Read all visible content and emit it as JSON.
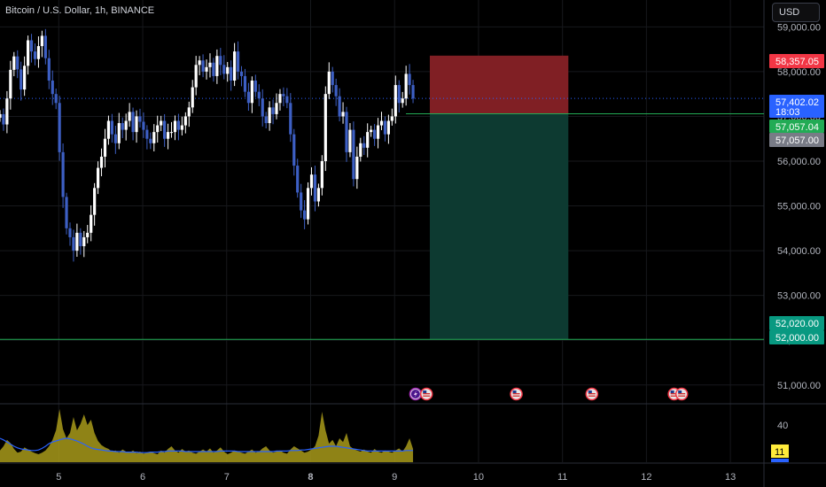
{
  "header": {
    "symbol_title": "Bitcoin / U.S. Dollar, 1h, BINANCE",
    "currency_button": "USD"
  },
  "colors": {
    "background": "#000000",
    "up_candle": "#ffffff",
    "down_candle": "#3d5fc4",
    "stop_zone": "#801f24",
    "target_zone": "#0d3a31",
    "current_price_tag": "#2962ff",
    "entry_tag": "#22ab55",
    "entry_tag_gray": "#787b86",
    "stop_tag": "#f23645",
    "target_tag": "#089981",
    "volume_area": "#a89a1a",
    "volume_ma": "#2962ff",
    "indicator_tag": "#ffeb3b"
  },
  "chart_data": {
    "type": "candlestick",
    "y_axis": {
      "min": 50600,
      "max": 59600,
      "ticks": [
        "59,000.00",
        "58,000.00",
        "57,000.00",
        "56,000.00",
        "55,000.00",
        "54,000.00",
        "53,000.00",
        "52,000.00",
        "51,000.00"
      ],
      "tick_values": [
        59000,
        58000,
        57000,
        56000,
        55000,
        54000,
        53000,
        52000,
        51000
      ]
    },
    "x_axis": {
      "ticks": [
        "5",
        "6",
        "7",
        "8",
        "9",
        "10",
        "11",
        "12",
        "13"
      ],
      "tick_values": [
        5,
        6,
        7,
        8,
        9,
        10,
        11,
        12,
        13
      ],
      "bold_ticks": [
        "8"
      ],
      "min": 4.3,
      "max": 13.4
    },
    "price_tags": [
      {
        "label": "58,357.05",
        "value": 58357.05,
        "role": "stop"
      },
      {
        "label": "57,402.02",
        "sub": "18:03",
        "value": 57402.02,
        "role": "current"
      },
      {
        "label": "57,057.04",
        "value": 57057.04,
        "role": "entry"
      },
      {
        "label": "57,057.00",
        "value": 57057.0,
        "role": "entry-gray"
      },
      {
        "label": "52,020.00",
        "value": 52020.0,
        "role": "target"
      },
      {
        "label": "52,000.00",
        "value": 52000.0,
        "role": "target"
      }
    ],
    "position": {
      "type": "short",
      "x_start": 9.42,
      "x_end": 11.07,
      "entry": 57057.04,
      "stop": 58357.05,
      "target": 52020.0
    },
    "closes": [
      57050,
      56820,
      57400,
      58040,
      58340,
      58050,
      57600,
      58130,
      58700,
      58450,
      58280,
      58570,
      58800,
      58300,
      57800,
      57500,
      57300,
      56200,
      55200,
      54500,
      54300,
      54000,
      54400,
      54100,
      54300,
      54400,
      54800,
      55400,
      55850,
      56100,
      56500,
      56900,
      56600,
      56400,
      56850,
      56700,
      56900,
      57100,
      56650,
      57000,
      56880,
      56700,
      56500,
      56400,
      56650,
      56800,
      56900,
      56500,
      56650,
      56650,
      56900,
      56700,
      56800,
      57000,
      57200,
      57650,
      58150,
      58250,
      58000,
      58100,
      58200,
      57900,
      58350,
      58150,
      57950,
      58100,
      57800,
      58450,
      58000,
      57900,
      57550,
      57300,
      57800,
      57550,
      57400,
      57000,
      56850,
      57200,
      57050,
      57300,
      57500,
      57450,
      57300,
      56600,
      55900,
      55300,
      54900,
      54700,
      55400,
      55700,
      55100,
      55400,
      56000,
      57500,
      58000,
      57700,
      57450,
      57000,
      57100,
      56200,
      56700,
      55600,
      56100,
      56400,
      56300,
      56650,
      56700,
      56500,
      56800,
      56900,
      56600,
      56900,
      57000,
      57700,
      57300,
      57400,
      57950,
      57700,
      57400
    ]
  },
  "volume_panel": {
    "axis_tick": "40",
    "indicator_value": "11",
    "values": [
      0.22,
      0.3,
      0.42,
      0.36,
      0.25,
      0.18,
      0.2,
      0.28,
      0.24,
      0.2,
      0.17,
      0.15,
      0.18,
      0.22,
      0.3,
      0.42,
      0.6,
      1.0,
      0.62,
      0.45,
      0.55,
      0.85,
      0.6,
      0.72,
      0.9,
      0.7,
      0.8,
      0.55,
      0.4,
      0.32,
      0.28,
      0.25,
      0.2,
      0.22,
      0.18,
      0.24,
      0.2,
      0.18,
      0.22,
      0.17,
      0.2,
      0.16,
      0.18,
      0.2,
      0.17,
      0.15,
      0.22,
      0.18,
      0.25,
      0.3,
      0.22,
      0.18,
      0.25,
      0.2,
      0.22,
      0.18,
      0.16,
      0.2,
      0.24,
      0.2,
      0.26,
      0.18,
      0.22,
      0.28,
      0.2,
      0.15,
      0.18,
      0.22,
      0.2,
      0.18,
      0.16,
      0.2,
      0.24,
      0.18,
      0.2,
      0.26,
      0.3,
      0.22,
      0.18,
      0.2,
      0.22,
      0.18,
      0.16,
      0.24,
      0.3,
      0.26,
      0.22,
      0.18,
      0.2,
      0.24,
      0.3,
      0.5,
      0.95,
      0.6,
      0.35,
      0.42,
      0.3,
      0.45,
      0.38,
      0.55,
      0.3,
      0.25,
      0.22,
      0.2,
      0.24,
      0.2,
      0.18,
      0.25,
      0.2,
      0.18,
      0.22,
      0.2,
      0.18,
      0.22,
      0.26,
      0.2,
      0.3,
      0.45,
      0.25
    ],
    "ma_values": [
      0.45,
      0.42,
      0.38,
      0.34,
      0.3,
      0.27,
      0.25,
      0.24,
      0.23,
      0.22,
      0.22,
      0.23,
      0.26,
      0.3,
      0.35,
      0.38,
      0.4,
      0.42,
      0.44,
      0.45,
      0.44,
      0.42,
      0.4,
      0.37,
      0.34,
      0.3,
      0.27,
      0.25,
      0.24,
      0.23,
      0.22,
      0.21,
      0.21,
      0.2,
      0.2,
      0.2,
      0.19,
      0.19,
      0.19,
      0.19,
      0.18,
      0.18,
      0.18,
      0.19,
      0.19,
      0.19,
      0.2,
      0.2,
      0.21,
      0.21,
      0.21,
      0.21,
      0.21,
      0.2,
      0.2,
      0.2,
      0.2,
      0.2,
      0.2,
      0.2,
      0.2,
      0.2,
      0.2,
      0.21,
      0.21,
      0.21,
      0.21,
      0.21,
      0.2,
      0.2,
      0.2,
      0.2,
      0.2,
      0.2,
      0.2,
      0.2,
      0.2,
      0.2,
      0.2,
      0.21,
      0.21,
      0.21,
      0.21,
      0.22,
      0.22,
      0.22,
      0.23,
      0.23,
      0.24,
      0.25,
      0.26,
      0.27,
      0.28,
      0.29,
      0.3,
      0.3,
      0.3,
      0.29,
      0.28,
      0.27,
      0.26,
      0.25,
      0.24,
      0.23,
      0.22,
      0.21,
      0.21,
      0.21,
      0.21,
      0.21,
      0.21,
      0.21,
      0.21,
      0.21,
      0.21,
      0.21,
      0.22,
      0.22,
      0.22
    ]
  },
  "event_markers": [
    {
      "icon": "lightning-icon",
      "x": 9.25,
      "color": "#9c27b0"
    },
    {
      "icon": "us-flag-icon",
      "x": 9.38,
      "color": "#ffffff"
    },
    {
      "icon": "us-flag-icon",
      "x": 10.45,
      "color": "#ffffff"
    },
    {
      "icon": "us-flag-icon",
      "x": 11.35,
      "color": "#ffffff"
    },
    {
      "icon": "us-flag-icon",
      "x": 12.33,
      "color": "#ffffff"
    },
    {
      "icon": "us-flag-icon",
      "x": 12.42,
      "color": "#ffffff"
    }
  ]
}
